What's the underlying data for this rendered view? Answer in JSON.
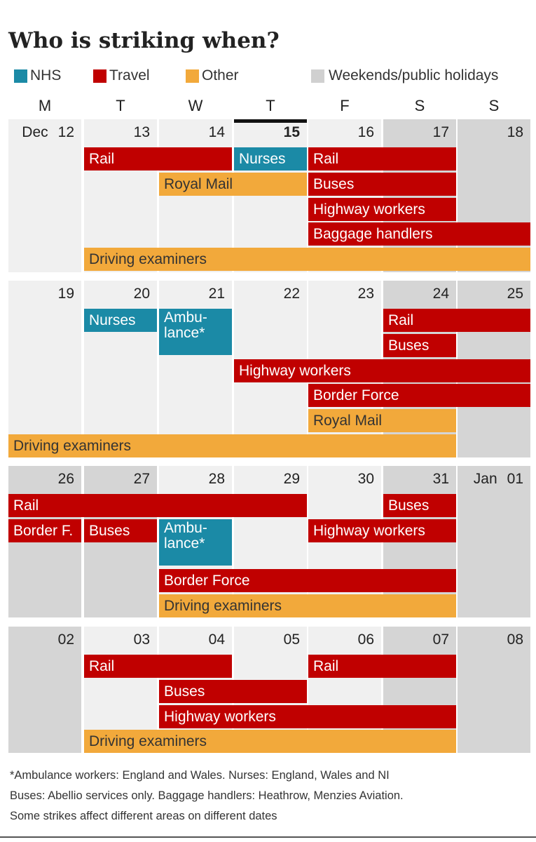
{
  "title": "Who is striking when?",
  "legend": [
    {
      "label": "NHS",
      "color": "#1b8aa6"
    },
    {
      "label": "Travel",
      "color": "#c00000"
    },
    {
      "label": "Other",
      "color": "#f2a93b"
    },
    {
      "label": "Weekends/public holidays",
      "color": "#d0d0d0"
    }
  ],
  "colors": {
    "nhs": "#1b8aa6",
    "travel": "#c00000",
    "other": "#f2a93b",
    "weekday_bg": "#f0f0f0",
    "weekend_bg": "#d5d5d5"
  },
  "chart_data": {
    "type": "calendar-timeline",
    "title": "Who is striking when?",
    "day_headers": [
      "M",
      "T",
      "W",
      "T",
      "F",
      "S",
      "S"
    ],
    "weeks": [
      {
        "days": [
          {
            "label": "12",
            "month": "Dec",
            "holiday": false
          },
          {
            "label": "13",
            "holiday": false
          },
          {
            "label": "14",
            "holiday": false
          },
          {
            "label": "15",
            "holiday": false,
            "today": true
          },
          {
            "label": "16",
            "holiday": false
          },
          {
            "label": "17",
            "holiday": true
          },
          {
            "label": "18",
            "holiday": true
          }
        ],
        "bars": [
          {
            "label": "Rail",
            "category": "travel",
            "start": 1,
            "end": 2
          },
          {
            "label": "Rail",
            "category": "travel",
            "start": 4,
            "end": 5
          },
          {
            "label": "Nurses",
            "category": "nhs",
            "start": 3,
            "end": 3
          },
          {
            "label": "Buses",
            "category": "travel",
            "start": 4,
            "end": 5
          },
          {
            "label": "Highway workers",
            "category": "travel",
            "start": 4,
            "end": 5
          },
          {
            "label": "Royal Mail",
            "category": "other",
            "start": 2,
            "end": 3
          },
          {
            "label": "Baggage handlers",
            "category": "travel",
            "start": 4,
            "end": 6
          },
          {
            "label": "Driving examiners",
            "category": "other",
            "start": 1,
            "end": 6
          }
        ]
      },
      {
        "days": [
          {
            "label": "19",
            "holiday": false
          },
          {
            "label": "20",
            "holiday": false
          },
          {
            "label": "21",
            "holiday": false
          },
          {
            "label": "22",
            "holiday": false
          },
          {
            "label": "23",
            "holiday": false
          },
          {
            "label": "24",
            "holiday": true
          },
          {
            "label": "25",
            "holiday": true
          }
        ],
        "bars": [
          {
            "label": "Nurses",
            "category": "nhs",
            "start": 1,
            "end": 1
          },
          {
            "label": "Ambu-\nlance*",
            "category": "nhs",
            "start": 2,
            "end": 2
          },
          {
            "label": "Rail",
            "category": "travel",
            "start": 5,
            "end": 6
          },
          {
            "label": "Buses",
            "category": "travel",
            "start": 5,
            "end": 5
          },
          {
            "label": "Highway workers",
            "category": "travel",
            "start": 3,
            "end": 6
          },
          {
            "label": "Border Force",
            "category": "travel",
            "start": 4,
            "end": 6
          },
          {
            "label": "Royal Mail",
            "category": "other",
            "start": 4,
            "end": 5
          },
          {
            "label": "Driving examiners",
            "category": "other",
            "start": 0,
            "end": 5
          }
        ]
      },
      {
        "days": [
          {
            "label": "26",
            "holiday": true
          },
          {
            "label": "27",
            "holiday": true
          },
          {
            "label": "28",
            "holiday": false
          },
          {
            "label": "29",
            "holiday": false
          },
          {
            "label": "30",
            "holiday": false
          },
          {
            "label": "31",
            "holiday": true
          },
          {
            "label": "01",
            "month": "Jan",
            "holiday": true
          }
        ],
        "bars": [
          {
            "label": "Rail",
            "category": "travel",
            "start": 0,
            "end": 3
          },
          {
            "label": "Buses",
            "category": "travel",
            "start": 1,
            "end": 1
          },
          {
            "label": "Ambu-\nlance*",
            "category": "nhs",
            "start": 2,
            "end": 2
          },
          {
            "label": "Buses",
            "category": "travel",
            "start": 5,
            "end": 5
          },
          {
            "label": "Highway workers",
            "category": "travel",
            "start": 4,
            "end": 5
          },
          {
            "label": "Border F.",
            "category": "travel",
            "start": 0,
            "end": 0
          },
          {
            "label": "Border Force",
            "category": "travel",
            "start": 2,
            "end": 5
          },
          {
            "label": "Driving examiners",
            "category": "other",
            "start": 2,
            "end": 5
          }
        ]
      },
      {
        "days": [
          {
            "label": "02",
            "holiday": true
          },
          {
            "label": "03",
            "holiday": false
          },
          {
            "label": "04",
            "holiday": false
          },
          {
            "label": "05",
            "holiday": false
          },
          {
            "label": "06",
            "holiday": false
          },
          {
            "label": "07",
            "holiday": true
          },
          {
            "label": "08",
            "holiday": true
          }
        ],
        "bars": [
          {
            "label": "Rail",
            "category": "travel",
            "start": 1,
            "end": 2
          },
          {
            "label": "Rail",
            "category": "travel",
            "start": 4,
            "end": 5
          },
          {
            "label": "Buses",
            "category": "travel",
            "start": 2,
            "end": 3
          },
          {
            "label": "Highway workers",
            "category": "travel",
            "start": 2,
            "end": 5
          },
          {
            "label": "Driving examiners",
            "category": "other",
            "start": 1,
            "end": 5
          }
        ]
      }
    ]
  },
  "footnotes": [
    "*Ambulance workers: England and Wales. Nurses: England, Wales and NI",
    "Buses: Abellio services only. Baggage handlers: Heathrow, Menzies Aviation.",
    "Some strikes affect different areas on different dates"
  ]
}
